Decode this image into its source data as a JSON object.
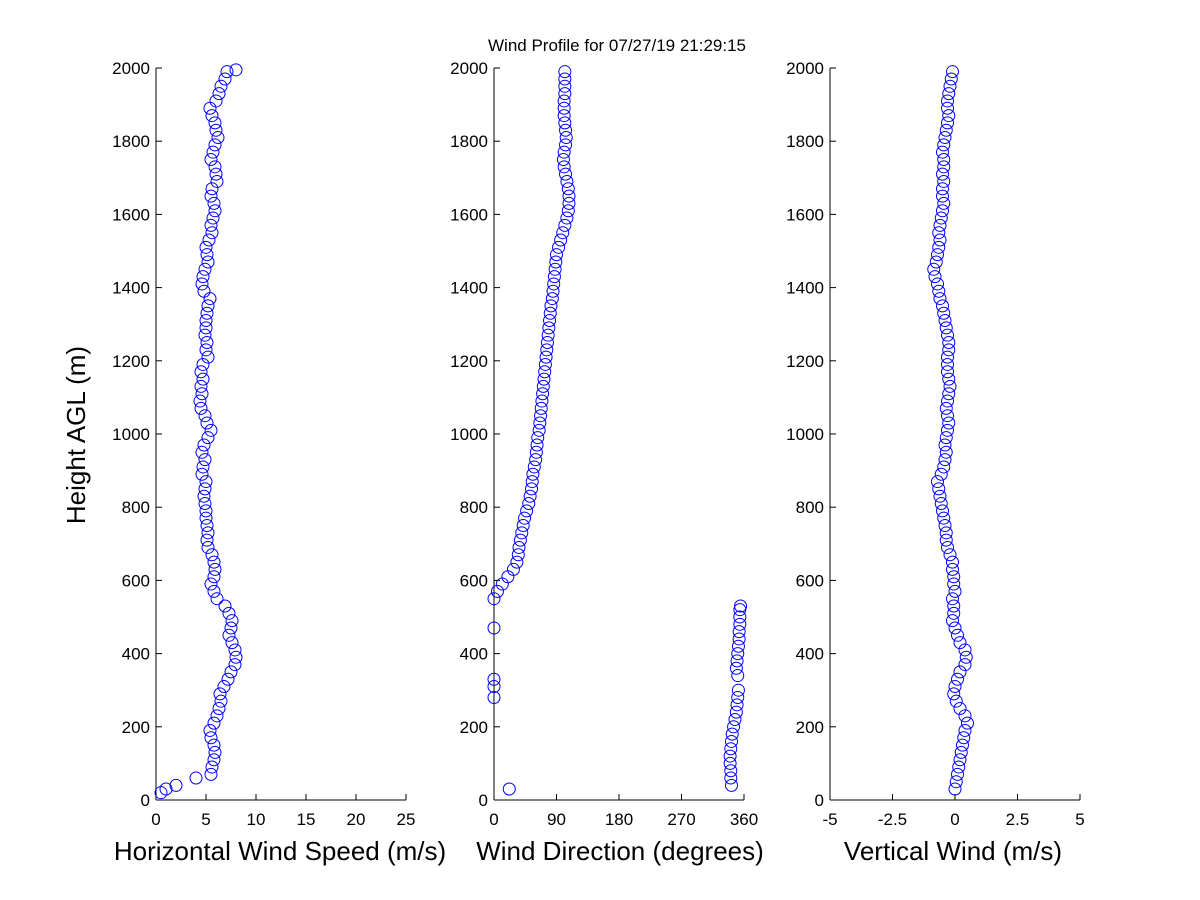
{
  "title": "Wind Profile for  07/27/19 21:29:15",
  "ylabel": "Height AGL (m)",
  "colors": {
    "marker": "#0000ff",
    "axis": "#000000",
    "background": "#ffffff"
  },
  "chart_data": [
    {
      "type": "scatter",
      "xlabel": "Horizontal Wind Speed (m/s)",
      "ylabel": "Height AGL (m)",
      "xlim": [
        0,
        25
      ],
      "ylim": [
        0,
        2000
      ],
      "xticks": [
        0,
        5,
        10,
        15,
        20,
        25
      ],
      "xtick_labels": [
        "0",
        "5",
        "10",
        "15",
        "20",
        "25"
      ],
      "yticks": [
        0,
        200,
        400,
        600,
        800,
        1000,
        1200,
        1400,
        1600,
        1800,
        2000
      ],
      "ytick_labels": [
        "0",
        "200",
        "400",
        "600",
        "800",
        "1000",
        "1200",
        "1400",
        "1600",
        "1800",
        "2000"
      ],
      "grid": false,
      "points": [
        [
          0.5,
          20
        ],
        [
          1.0,
          30
        ],
        [
          2.0,
          40
        ],
        [
          4.0,
          60
        ],
        [
          5.5,
          70
        ],
        [
          5.6,
          90
        ],
        [
          5.8,
          110
        ],
        [
          5.9,
          130
        ],
        [
          5.8,
          150
        ],
        [
          5.5,
          170
        ],
        [
          5.4,
          190
        ],
        [
          5.8,
          210
        ],
        [
          6.1,
          230
        ],
        [
          6.3,
          250
        ],
        [
          6.5,
          270
        ],
        [
          6.4,
          290
        ],
        [
          6.8,
          310
        ],
        [
          7.2,
          330
        ],
        [
          7.5,
          350
        ],
        [
          7.9,
          370
        ],
        [
          8.0,
          390
        ],
        [
          7.9,
          410
        ],
        [
          7.6,
          430
        ],
        [
          7.3,
          450
        ],
        [
          7.5,
          470
        ],
        [
          7.6,
          490
        ],
        [
          7.3,
          510
        ],
        [
          6.9,
          530
        ],
        [
          6.1,
          550
        ],
        [
          5.8,
          570
        ],
        [
          5.5,
          590
        ],
        [
          5.8,
          610
        ],
        [
          5.9,
          630
        ],
        [
          5.8,
          650
        ],
        [
          5.6,
          670
        ],
        [
          5.2,
          690
        ],
        [
          5.1,
          710
        ],
        [
          5.2,
          730
        ],
        [
          5.1,
          750
        ],
        [
          5.0,
          770
        ],
        [
          5.0,
          790
        ],
        [
          4.9,
          810
        ],
        [
          4.8,
          830
        ],
        [
          4.9,
          850
        ],
        [
          5.0,
          870
        ],
        [
          4.6,
          890
        ],
        [
          4.7,
          910
        ],
        [
          4.9,
          930
        ],
        [
          4.6,
          950
        ],
        [
          4.8,
          970
        ],
        [
          5.2,
          990
        ],
        [
          5.5,
          1010
        ],
        [
          5.1,
          1030
        ],
        [
          4.9,
          1050
        ],
        [
          4.5,
          1070
        ],
        [
          4.4,
          1090
        ],
        [
          4.6,
          1110
        ],
        [
          4.5,
          1130
        ],
        [
          4.7,
          1150
        ],
        [
          4.5,
          1170
        ],
        [
          4.7,
          1190
        ],
        [
          5.2,
          1210
        ],
        [
          5.0,
          1230
        ],
        [
          5.1,
          1250
        ],
        [
          4.9,
          1270
        ],
        [
          5.0,
          1290
        ],
        [
          5.0,
          1310
        ],
        [
          5.1,
          1330
        ],
        [
          5.2,
          1350
        ],
        [
          5.4,
          1370
        ],
        [
          4.8,
          1390
        ],
        [
          4.6,
          1410
        ],
        [
          4.7,
          1430
        ],
        [
          4.9,
          1450
        ],
        [
          5.2,
          1470
        ],
        [
          5.1,
          1490
        ],
        [
          5.0,
          1510
        ],
        [
          5.3,
          1530
        ],
        [
          5.6,
          1550
        ],
        [
          5.5,
          1570
        ],
        [
          5.7,
          1590
        ],
        [
          5.9,
          1610
        ],
        [
          5.8,
          1630
        ],
        [
          5.5,
          1650
        ],
        [
          5.6,
          1670
        ],
        [
          6.1,
          1690
        ],
        [
          6.0,
          1710
        ],
        [
          5.9,
          1730
        ],
        [
          5.5,
          1750
        ],
        [
          5.7,
          1770
        ],
        [
          5.9,
          1790
        ],
        [
          6.2,
          1810
        ],
        [
          6.0,
          1830
        ],
        [
          5.9,
          1850
        ],
        [
          5.6,
          1870
        ],
        [
          5.4,
          1890
        ],
        [
          6.0,
          1910
        ],
        [
          6.3,
          1930
        ],
        [
          6.5,
          1950
        ],
        [
          6.9,
          1970
        ],
        [
          7.1,
          1990
        ],
        [
          8.0,
          1995
        ]
      ]
    },
    {
      "type": "scatter",
      "xlabel": "Wind Direction (degrees)",
      "xlim": [
        0,
        360
      ],
      "ylim": [
        0,
        2000
      ],
      "xticks": [
        0,
        90,
        180,
        270,
        360
      ],
      "xtick_labels": [
        "0",
        "90",
        "180",
        "270",
        "360"
      ],
      "yticks": [
        0,
        200,
        400,
        600,
        800,
        1000,
        1200,
        1400,
        1600,
        1800,
        2000
      ],
      "ytick_labels": [
        "0",
        "200",
        "400",
        "600",
        "800",
        "1000",
        "1200",
        "1400",
        "1600",
        "1800",
        "2000"
      ],
      "grid": false,
      "points": [
        [
          22,
          30
        ],
        [
          0,
          280
        ],
        [
          0,
          310
        ],
        [
          0,
          330
        ],
        [
          0,
          470
        ],
        [
          0,
          550
        ],
        [
          5,
          570
        ],
        [
          12,
          590
        ],
        [
          20,
          610
        ],
        [
          28,
          630
        ],
        [
          33,
          650
        ],
        [
          35,
          670
        ],
        [
          36,
          690
        ],
        [
          38,
          710
        ],
        [
          40,
          730
        ],
        [
          42,
          750
        ],
        [
          44,
          770
        ],
        [
          47,
          790
        ],
        [
          50,
          810
        ],
        [
          52,
          830
        ],
        [
          54,
          850
        ],
        [
          55,
          870
        ],
        [
          56,
          890
        ],
        [
          58,
          910
        ],
        [
          60,
          930
        ],
        [
          61,
          950
        ],
        [
          62,
          970
        ],
        [
          63,
          990
        ],
        [
          65,
          1010
        ],
        [
          66,
          1030
        ],
        [
          67,
          1050
        ],
        [
          68,
          1070
        ],
        [
          69,
          1090
        ],
        [
          70,
          1110
        ],
        [
          71,
          1130
        ],
        [
          72,
          1150
        ],
        [
          73,
          1170
        ],
        [
          74,
          1190
        ],
        [
          75,
          1210
        ],
        [
          76,
          1230
        ],
        [
          77,
          1250
        ],
        [
          78,
          1270
        ],
        [
          79,
          1290
        ],
        [
          80,
          1310
        ],
        [
          81,
          1330
        ],
        [
          82,
          1350
        ],
        [
          84,
          1370
        ],
        [
          85,
          1390
        ],
        [
          86,
          1410
        ],
        [
          87,
          1430
        ],
        [
          88,
          1450
        ],
        [
          89,
          1470
        ],
        [
          90,
          1490
        ],
        [
          93,
          1510
        ],
        [
          96,
          1530
        ],
        [
          99,
          1550
        ],
        [
          102,
          1570
        ],
        [
          105,
          1590
        ],
        [
          107,
          1610
        ],
        [
          108,
          1630
        ],
        [
          108,
          1650
        ],
        [
          107,
          1670
        ],
        [
          105,
          1690
        ],
        [
          103,
          1710
        ],
        [
          101,
          1730
        ],
        [
          100,
          1750
        ],
        [
          101,
          1770
        ],
        [
          103,
          1790
        ],
        [
          104,
          1810
        ],
        [
          103,
          1830
        ],
        [
          102,
          1850
        ],
        [
          101,
          1870
        ],
        [
          101,
          1890
        ],
        [
          101,
          1910
        ],
        [
          102,
          1930
        ],
        [
          102,
          1950
        ],
        [
          102,
          1970
        ],
        [
          102,
          1990
        ],
        [
          342,
          40
        ],
        [
          341,
          60
        ],
        [
          341,
          80
        ],
        [
          340,
          100
        ],
        [
          340,
          120
        ],
        [
          341,
          140
        ],
        [
          342,
          160
        ],
        [
          343,
          180
        ],
        [
          345,
          200
        ],
        [
          347,
          220
        ],
        [
          349,
          240
        ],
        [
          350,
          260
        ],
        [
          351,
          280
        ],
        [
          352,
          300
        ],
        [
          351,
          340
        ],
        [
          349,
          360
        ],
        [
          350,
          380
        ],
        [
          351,
          400
        ],
        [
          352,
          420
        ],
        [
          353,
          440
        ],
        [
          353,
          460
        ],
        [
          354,
          480
        ],
        [
          354,
          500
        ],
        [
          354,
          520
        ],
        [
          355,
          530
        ]
      ]
    },
    {
      "type": "scatter",
      "xlabel": "Vertical Wind (m/s)",
      "xlim": [
        -5,
        5
      ],
      "ylim": [
        0,
        2000
      ],
      "xticks": [
        -5,
        -2.5,
        0,
        2.5,
        5
      ],
      "xtick_labels": [
        "-5",
        "-2.5",
        "0",
        "2.5",
        "5"
      ],
      "yticks": [
        0,
        200,
        400,
        600,
        800,
        1000,
        1200,
        1400,
        1600,
        1800,
        2000
      ],
      "ytick_labels": [
        "0",
        "200",
        "400",
        "600",
        "800",
        "1000",
        "1200",
        "1400",
        "1600",
        "1800",
        "2000"
      ],
      "grid": false,
      "points": [
        [
          0.0,
          30
        ],
        [
          0.05,
          50
        ],
        [
          0.1,
          70
        ],
        [
          0.15,
          90
        ],
        [
          0.2,
          110
        ],
        [
          0.25,
          130
        ],
        [
          0.3,
          150
        ],
        [
          0.35,
          170
        ],
        [
          0.4,
          190
        ],
        [
          0.5,
          210
        ],
        [
          0.4,
          230
        ],
        [
          0.2,
          250
        ],
        [
          0.05,
          270
        ],
        [
          -0.05,
          290
        ],
        [
          0.0,
          310
        ],
        [
          0.1,
          330
        ],
        [
          0.2,
          350
        ],
        [
          0.4,
          370
        ],
        [
          0.45,
          390
        ],
        [
          0.4,
          410
        ],
        [
          0.2,
          430
        ],
        [
          0.1,
          450
        ],
        [
          0.0,
          470
        ],
        [
          -0.1,
          490
        ],
        [
          -0.05,
          510
        ],
        [
          -0.05,
          530
        ],
        [
          -0.1,
          550
        ],
        [
          0.0,
          570
        ],
        [
          -0.05,
          590
        ],
        [
          -0.05,
          610
        ],
        [
          -0.1,
          630
        ],
        [
          -0.1,
          650
        ],
        [
          -0.2,
          670
        ],
        [
          -0.3,
          690
        ],
        [
          -0.35,
          710
        ],
        [
          -0.35,
          730
        ],
        [
          -0.4,
          750
        ],
        [
          -0.45,
          770
        ],
        [
          -0.5,
          790
        ],
        [
          -0.55,
          810
        ],
        [
          -0.6,
          830
        ],
        [
          -0.65,
          850
        ],
        [
          -0.7,
          870
        ],
        [
          -0.55,
          890
        ],
        [
          -0.45,
          910
        ],
        [
          -0.4,
          930
        ],
        [
          -0.35,
          950
        ],
        [
          -0.4,
          970
        ],
        [
          -0.35,
          990
        ],
        [
          -0.3,
          1010
        ],
        [
          -0.25,
          1030
        ],
        [
          -0.3,
          1050
        ],
        [
          -0.35,
          1070
        ],
        [
          -0.3,
          1090
        ],
        [
          -0.25,
          1110
        ],
        [
          -0.2,
          1130
        ],
        [
          -0.25,
          1150
        ],
        [
          -0.3,
          1170
        ],
        [
          -0.3,
          1190
        ],
        [
          -0.3,
          1210
        ],
        [
          -0.25,
          1230
        ],
        [
          -0.25,
          1250
        ],
        [
          -0.3,
          1270
        ],
        [
          -0.35,
          1290
        ],
        [
          -0.4,
          1310
        ],
        [
          -0.45,
          1330
        ],
        [
          -0.5,
          1350
        ],
        [
          -0.6,
          1370
        ],
        [
          -0.65,
          1390
        ],
        [
          -0.7,
          1410
        ],
        [
          -0.8,
          1430
        ],
        [
          -0.85,
          1450
        ],
        [
          -0.75,
          1470
        ],
        [
          -0.7,
          1490
        ],
        [
          -0.65,
          1510
        ],
        [
          -0.6,
          1530
        ],
        [
          -0.65,
          1550
        ],
        [
          -0.6,
          1570
        ],
        [
          -0.55,
          1590
        ],
        [
          -0.5,
          1610
        ],
        [
          -0.45,
          1630
        ],
        [
          -0.5,
          1650
        ],
        [
          -0.5,
          1670
        ],
        [
          -0.45,
          1690
        ],
        [
          -0.5,
          1710
        ],
        [
          -0.45,
          1730
        ],
        [
          -0.45,
          1750
        ],
        [
          -0.5,
          1770
        ],
        [
          -0.45,
          1790
        ],
        [
          -0.4,
          1810
        ],
        [
          -0.35,
          1830
        ],
        [
          -0.3,
          1850
        ],
        [
          -0.25,
          1870
        ],
        [
          -0.3,
          1890
        ],
        [
          -0.3,
          1910
        ],
        [
          -0.25,
          1930
        ],
        [
          -0.2,
          1950
        ],
        [
          -0.15,
          1970
        ],
        [
          -0.1,
          1990
        ]
      ]
    }
  ]
}
